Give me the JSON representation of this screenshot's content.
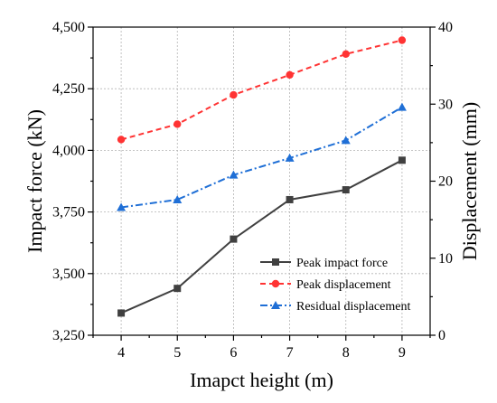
{
  "chart_data": {
    "type": "line",
    "xlabel": "Imapct height (m)",
    "ylabel_left": "Impact force (kN)",
    "ylabel_right": "Displacement (mm)",
    "x": [
      4,
      5,
      6,
      7,
      8,
      9
    ],
    "x_ticks": [
      "4",
      "5",
      "6",
      "7",
      "8",
      "9"
    ],
    "xlim": [
      3.5,
      9.5
    ],
    "ylim_left": [
      3250,
      4500
    ],
    "y_ticks_left": [
      "3,250",
      "3,500",
      "3,750",
      "4,000",
      "4,250",
      "4,500"
    ],
    "ylim_right": [
      0,
      40
    ],
    "y_ticks_right": [
      "0",
      "10",
      "20",
      "30",
      "40"
    ],
    "grid": true,
    "legend_position": "bottom-right",
    "series": [
      {
        "name": "Peak impact force",
        "axis": "left",
        "color": "#404040",
        "style": "solid",
        "marker": "square",
        "values": [
          3340,
          3440,
          3640,
          3800,
          3840,
          3960
        ]
      },
      {
        "name": "Peak displacement",
        "axis": "right",
        "color": "#ff3333",
        "style": "dash",
        "marker": "circle",
        "values": [
          25.4,
          27.4,
          31.2,
          33.8,
          36.5,
          38.3
        ]
      },
      {
        "name": "Residual displacement",
        "axis": "right",
        "color": "#1f6fd6",
        "style": "dashdot",
        "marker": "triangle",
        "values": [
          16.6,
          17.6,
          20.8,
          23.0,
          25.3,
          29.6
        ]
      }
    ]
  }
}
